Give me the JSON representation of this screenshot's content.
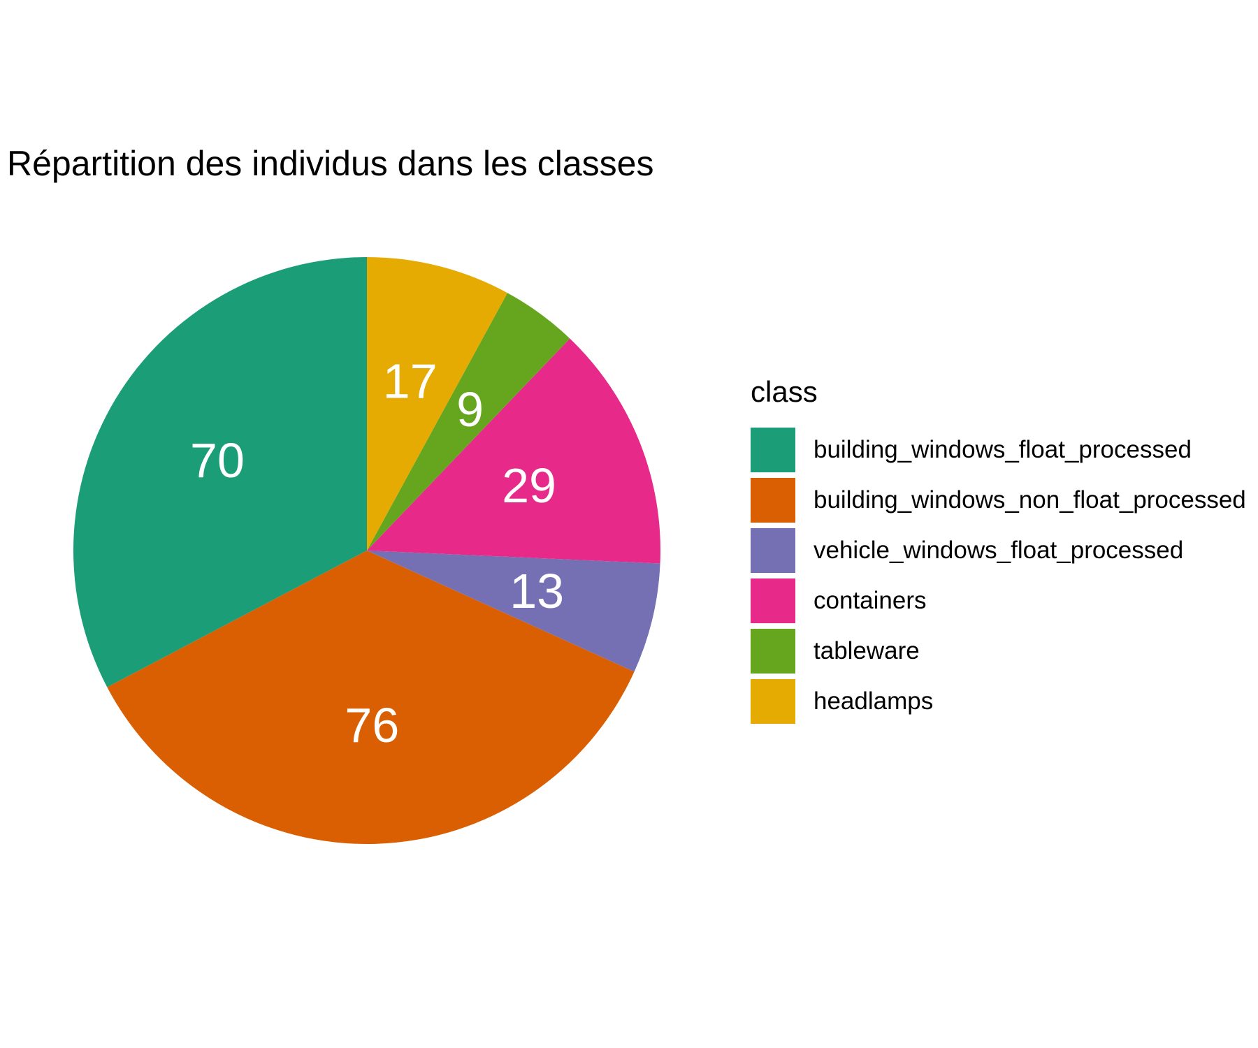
{
  "chart_data": {
    "type": "pie",
    "title": "Répartition des individus dans les classes",
    "legend_title": "class",
    "legend_position": "right",
    "categories": [
      "building_windows_float_processed",
      "building_windows_non_float_processed",
      "vehicle_windows_float_processed",
      "containers",
      "tableware",
      "headlamps"
    ],
    "values": [
      70,
      76,
      13,
      29,
      9,
      17
    ],
    "colors": [
      "#1b9e77",
      "#d95f02",
      "#7570b3",
      "#e7298a",
      "#66a61e",
      "#e6ab02"
    ],
    "label_color": "#ffffff",
    "direction": "counterclockwise-from-top"
  }
}
